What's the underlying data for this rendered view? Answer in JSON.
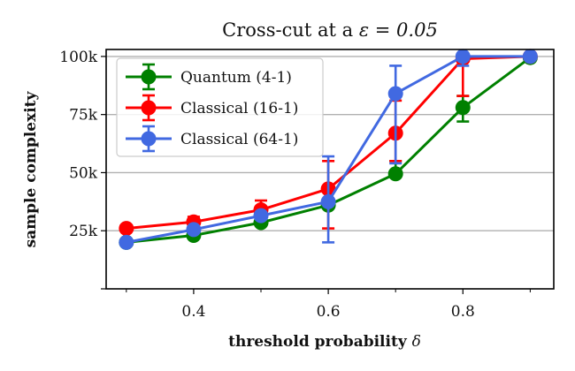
{
  "chart_data": {
    "type": "line",
    "title": "Cross-cut at a ε = 0.05",
    "title_prefix": "Cross-cut at a",
    "title_math": "ε = 0.05",
    "xlabel": "threshold probability δ",
    "xlabel_text": "threshold probability",
    "xlabel_symbol": "δ",
    "ylabel": "sample complexity",
    "xlim": [
      0.27,
      0.935
    ],
    "ylim": [
      0,
      103000
    ],
    "xticks": [
      {
        "value": 0.4,
        "label": "0.4"
      },
      {
        "value": 0.6,
        "label": "0.6"
      },
      {
        "value": 0.8,
        "label": "0.8"
      }
    ],
    "xticks_minor": [
      0.3,
      0.5,
      0.7,
      0.9
    ],
    "yticks": [
      {
        "value": 25000,
        "label": "25k"
      },
      {
        "value": 50000,
        "label": "50k"
      },
      {
        "value": 75000,
        "label": "75k"
      },
      {
        "value": 100000,
        "label": "100k"
      }
    ],
    "ytick_unlabeled": [
      0
    ],
    "grid": "horizontal",
    "legend_position": "top-left",
    "series": [
      {
        "name": "Quantum (4-1)",
        "color": "#008000",
        "x": [
          0.3,
          0.4,
          0.5,
          0.6,
          0.7,
          0.8,
          0.9
        ],
        "y": [
          20000,
          23000,
          28500,
          36000,
          49500,
          78000,
          99500
        ],
        "err_low": [
          20000,
          23000,
          28500,
          35500,
          49500,
          72000,
          99500
        ],
        "err_high": [
          20000,
          23000,
          28500,
          36500,
          55000,
          83000,
          99500
        ]
      },
      {
        "name": "Classical (16-1)",
        "color": "#ff0000",
        "x": [
          0.3,
          0.4,
          0.5,
          0.6,
          0.7,
          0.8,
          0.9
        ],
        "y": [
          26000,
          28800,
          34000,
          43000,
          67000,
          99000,
          100000
        ],
        "err_low": [
          26000,
          27000,
          31000,
          26000,
          55000,
          83000,
          100000
        ],
        "err_high": [
          26000,
          31000,
          38000,
          55000,
          81000,
          100000,
          100000
        ]
      },
      {
        "name": "Classical (64-1)",
        "color": "#4169e1",
        "x": [
          0.3,
          0.4,
          0.5,
          0.6,
          0.7,
          0.8,
          0.9
        ],
        "y": [
          20000,
          25500,
          31500,
          37500,
          84000,
          100000,
          100000
        ],
        "err_low": [
          20000,
          24500,
          30000,
          20000,
          54000,
          96000,
          100000
        ],
        "err_high": [
          20000,
          26500,
          33000,
          57000,
          96000,
          100000,
          100000
        ]
      }
    ]
  }
}
